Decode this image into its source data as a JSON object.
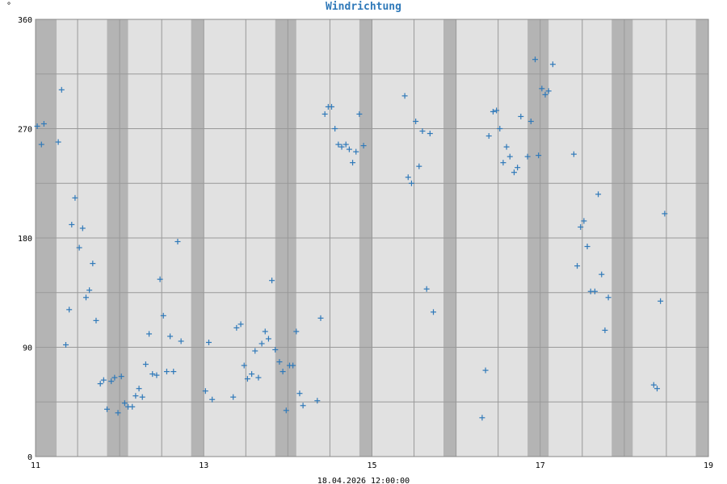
{
  "chart_data": {
    "type": "scatter",
    "title": "Windrichtung",
    "unit": "°",
    "footer": "18.04.2026 12:00:00",
    "xlim": [
      11,
      19
    ],
    "ylim": [
      0,
      360
    ],
    "x_tick_labels": [
      "11",
      "13",
      "15",
      "17",
      "19"
    ],
    "x_tick_values": [
      11,
      13,
      15,
      17,
      19
    ],
    "y_tick_labels": [
      "0",
      "90",
      "180",
      "270",
      "360"
    ],
    "y_tick_values": [
      0,
      90,
      180,
      270,
      360
    ],
    "y_minor_gridlines": [
      45,
      135,
      225,
      315
    ],
    "grid": true,
    "colors": {
      "marker": "#2f79b9",
      "plot_background": "#e1e1e1",
      "night_band": "#b4b4b4",
      "grid": "#999999",
      "title": "#2f79b9"
    },
    "night_bands": [
      [
        11.0,
        11.25
      ],
      [
        11.85,
        12.1
      ],
      [
        12.85,
        13.0
      ],
      [
        13.85,
        14.1
      ],
      [
        14.85,
        15.0
      ],
      [
        15.85,
        16.0
      ],
      [
        16.85,
        17.1
      ],
      [
        17.85,
        18.1
      ],
      [
        18.85,
        19.0
      ]
    ],
    "series": [
      {
        "marker": "plus",
        "points": [
          [
            11.02,
            272
          ],
          [
            11.07,
            257
          ],
          [
            11.1,
            274
          ],
          [
            11.27,
            259
          ],
          [
            11.31,
            302
          ],
          [
            11.36,
            92
          ],
          [
            11.4,
            121
          ],
          [
            11.43,
            191
          ],
          [
            11.47,
            213
          ],
          [
            11.52,
            172
          ],
          [
            11.56,
            188
          ],
          [
            11.6,
            131
          ],
          [
            11.64,
            137
          ],
          [
            11.68,
            159
          ],
          [
            11.72,
            112
          ],
          [
            11.77,
            60
          ],
          [
            11.81,
            63
          ],
          [
            11.85,
            39
          ],
          [
            11.9,
            62
          ],
          [
            11.94,
            65
          ],
          [
            11.98,
            36
          ],
          [
            12.02,
            66
          ],
          [
            12.06,
            44
          ],
          [
            12.1,
            41
          ],
          [
            12.15,
            41
          ],
          [
            12.19,
            50
          ],
          [
            12.23,
            56
          ],
          [
            12.27,
            49
          ],
          [
            12.31,
            76
          ],
          [
            12.35,
            101
          ],
          [
            12.39,
            68
          ],
          [
            12.44,
            67
          ],
          [
            12.48,
            146
          ],
          [
            12.52,
            116
          ],
          [
            12.56,
            70
          ],
          [
            12.6,
            99
          ],
          [
            12.64,
            70
          ],
          [
            12.69,
            177
          ],
          [
            12.73,
            95
          ],
          [
            13.02,
            54
          ],
          [
            13.06,
            94
          ],
          [
            13.1,
            47
          ],
          [
            13.35,
            49
          ],
          [
            13.39,
            106
          ],
          [
            13.44,
            109
          ],
          [
            13.48,
            75
          ],
          [
            13.52,
            64
          ],
          [
            13.57,
            68
          ],
          [
            13.61,
            87
          ],
          [
            13.65,
            65
          ],
          [
            13.69,
            93
          ],
          [
            13.73,
            103
          ],
          [
            13.77,
            97
          ],
          [
            13.81,
            145
          ],
          [
            13.85,
            88
          ],
          [
            13.9,
            78
          ],
          [
            13.94,
            70
          ],
          [
            13.98,
            38
          ],
          [
            14.02,
            75
          ],
          [
            14.06,
            75
          ],
          [
            14.1,
            103
          ],
          [
            14.14,
            52
          ],
          [
            14.18,
            42
          ],
          [
            14.35,
            46
          ],
          [
            14.39,
            114
          ],
          [
            14.44,
            282
          ],
          [
            14.48,
            288
          ],
          [
            14.52,
            288
          ],
          [
            14.56,
            270
          ],
          [
            14.6,
            257
          ],
          [
            14.64,
            255
          ],
          [
            14.69,
            257
          ],
          [
            14.73,
            253
          ],
          [
            14.77,
            242
          ],
          [
            14.81,
            251
          ],
          [
            14.85,
            282
          ],
          [
            14.9,
            256
          ],
          [
            15.39,
            297
          ],
          [
            15.43,
            230
          ],
          [
            15.47,
            225
          ],
          [
            15.52,
            276
          ],
          [
            15.56,
            239
          ],
          [
            15.6,
            268
          ],
          [
            15.65,
            138
          ],
          [
            15.69,
            266
          ],
          [
            15.73,
            119
          ],
          [
            16.31,
            32
          ],
          [
            16.35,
            71
          ],
          [
            16.39,
            264
          ],
          [
            16.44,
            284
          ],
          [
            16.48,
            285
          ],
          [
            16.52,
            270
          ],
          [
            16.56,
            242
          ],
          [
            16.6,
            255
          ],
          [
            16.64,
            247
          ],
          [
            16.69,
            234
          ],
          [
            16.73,
            238
          ],
          [
            16.77,
            280
          ],
          [
            16.85,
            247
          ],
          [
            16.89,
            276
          ],
          [
            16.94,
            327
          ],
          [
            16.98,
            248
          ],
          [
            17.02,
            303
          ],
          [
            17.06,
            298
          ],
          [
            17.1,
            301
          ],
          [
            17.15,
            323
          ],
          [
            17.4,
            249
          ],
          [
            17.44,
            157
          ],
          [
            17.48,
            189
          ],
          [
            17.52,
            194
          ],
          [
            17.56,
            173
          ],
          [
            17.6,
            136
          ],
          [
            17.65,
            136
          ],
          [
            17.69,
            216
          ],
          [
            17.73,
            150
          ],
          [
            17.77,
            104
          ],
          [
            17.81,
            131
          ],
          [
            18.35,
            59
          ],
          [
            18.39,
            56
          ],
          [
            18.43,
            128
          ],
          [
            18.48,
            200
          ]
        ]
      }
    ]
  }
}
